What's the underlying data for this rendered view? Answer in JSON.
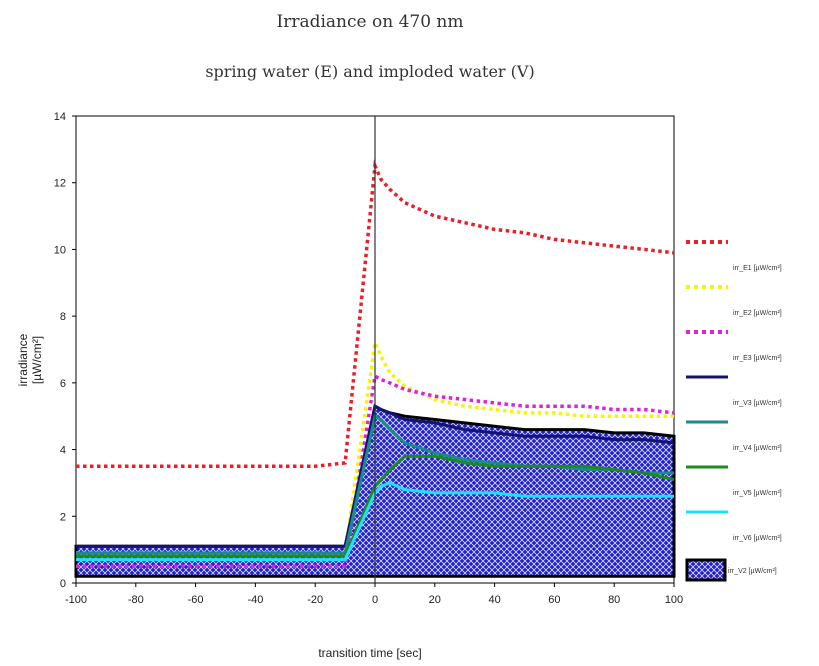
{
  "chart_data": {
    "type": "line",
    "title": "Irradiance on 470 nm",
    "subtitle": "spring water (E) and imploded water (V)",
    "xlabel": "transition time [sec]",
    "ylabel": "irradiance  [µW/cm²]",
    "xlim": [
      -100,
      100
    ],
    "ylim": [
      0,
      14
    ],
    "xticks": [
      -100,
      -80,
      -60,
      -40,
      -20,
      0,
      20,
      40,
      60,
      80,
      100
    ],
    "yticks": [
      0,
      2,
      4,
      6,
      8,
      10,
      12,
      14
    ],
    "legend_position": "right",
    "series": [
      {
        "name": "irr_E1 [µW/cm²]",
        "color": "#e8202a",
        "style": "dotted",
        "x": [
          -100,
          -80,
          -60,
          -40,
          -20,
          -10,
          0,
          2,
          5,
          10,
          20,
          30,
          40,
          50,
          60,
          70,
          80,
          90,
          100
        ],
        "y": [
          3.5,
          3.5,
          3.5,
          3.5,
          3.5,
          3.6,
          12.5,
          12.1,
          11.8,
          11.4,
          11.0,
          10.8,
          10.6,
          10.5,
          10.3,
          10.2,
          10.1,
          10.0,
          9.9
        ]
      },
      {
        "name": "irr_E2 [µW/cm²]",
        "color": "#f5f500",
        "style": "dotted",
        "x": [
          -100,
          -80,
          -60,
          -40,
          -20,
          -10,
          0,
          2,
          5,
          10,
          20,
          30,
          40,
          50,
          60,
          70,
          80,
          90,
          100
        ],
        "y": [
          0.9,
          0.9,
          0.9,
          0.9,
          0.9,
          0.9,
          7.2,
          6.8,
          6.3,
          5.9,
          5.5,
          5.3,
          5.2,
          5.1,
          5.1,
          5.0,
          5.0,
          5.0,
          5.0
        ]
      },
      {
        "name": "irr_E3 [µW/cm²]",
        "color": "#e020e0",
        "style": "dotted",
        "x": [
          -100,
          -80,
          -60,
          -40,
          -20,
          -10,
          0,
          2,
          5,
          10,
          20,
          30,
          40,
          50,
          60,
          70,
          80,
          90,
          100
        ],
        "y": [
          0.5,
          0.5,
          0.5,
          0.5,
          0.5,
          0.5,
          6.2,
          6.1,
          6.0,
          5.8,
          5.6,
          5.5,
          5.4,
          5.3,
          5.3,
          5.3,
          5.2,
          5.2,
          5.1
        ]
      },
      {
        "name": "irr_V3 [µW/cm²]",
        "color": "#141470",
        "style": "solid",
        "x": [
          -100,
          -80,
          -60,
          -40,
          -20,
          -10,
          0,
          2,
          5,
          10,
          20,
          30,
          40,
          50,
          60,
          70,
          80,
          90,
          100
        ],
        "y": [
          1.1,
          1.1,
          1.1,
          1.1,
          1.1,
          1.1,
          5.3,
          5.2,
          5.1,
          4.9,
          4.8,
          4.6,
          4.5,
          4.4,
          4.4,
          4.4,
          4.3,
          4.3,
          4.2
        ]
      },
      {
        "name": "irr_V4 [µW/cm²]",
        "color": "#1a8a8a",
        "style": "solid",
        "x": [
          -100,
          -80,
          -60,
          -40,
          -20,
          -10,
          0,
          2,
          5,
          10,
          20,
          30,
          40,
          50,
          60,
          70,
          80,
          90,
          100
        ],
        "y": [
          0.9,
          0.9,
          0.9,
          0.9,
          0.9,
          0.9,
          5.0,
          4.9,
          4.6,
          4.2,
          3.9,
          3.7,
          3.6,
          3.5,
          3.5,
          3.4,
          3.4,
          3.3,
          3.3
        ]
      },
      {
        "name": "irr_V5 [µW/cm²]",
        "color": "#1e8a1e",
        "style": "solid",
        "x": [
          -100,
          -80,
          -60,
          -40,
          -20,
          -10,
          0,
          2,
          5,
          10,
          20,
          30,
          40,
          50,
          60,
          70,
          80,
          90,
          100
        ],
        "y": [
          0.8,
          0.8,
          0.8,
          0.8,
          0.8,
          0.8,
          2.9,
          3.1,
          3.4,
          3.8,
          3.8,
          3.6,
          3.5,
          3.5,
          3.5,
          3.5,
          3.4,
          3.3,
          3.1
        ]
      },
      {
        "name": "irr_V6 [µW/cm²]",
        "color": "#1ee0ff",
        "style": "solid",
        "x": [
          -100,
          -80,
          -60,
          -40,
          -20,
          -10,
          0,
          2,
          5,
          10,
          20,
          30,
          40,
          50,
          60,
          70,
          80,
          90,
          100
        ],
        "y": [
          0.7,
          0.7,
          0.7,
          0.7,
          0.7,
          0.7,
          2.7,
          2.9,
          3.0,
          2.8,
          2.7,
          2.7,
          2.7,
          2.6,
          2.6,
          2.6,
          2.6,
          2.6,
          2.6
        ]
      },
      {
        "name": "irr_V2 [µW/cm²]",
        "color": "#2020d0",
        "style": "area",
        "x": [
          -100,
          -80,
          -60,
          -40,
          -20,
          -10,
          0,
          2,
          5,
          10,
          20,
          30,
          40,
          50,
          60,
          70,
          80,
          90,
          100
        ],
        "y": [
          0.9,
          0.9,
          0.9,
          0.9,
          0.9,
          0.9,
          5.1,
          5.0,
          4.9,
          4.8,
          4.7,
          4.6,
          4.5,
          4.4,
          4.4,
          4.4,
          4.3,
          4.3,
          4.2
        ]
      }
    ]
  }
}
